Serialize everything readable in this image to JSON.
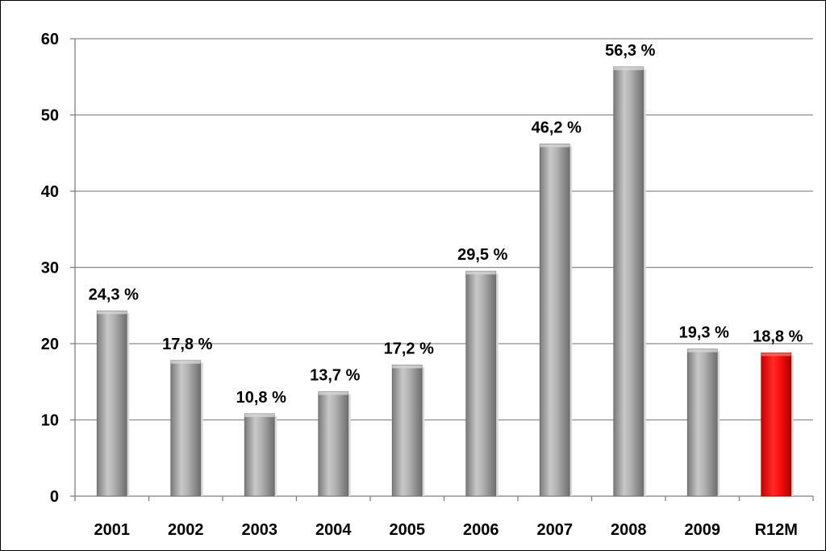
{
  "chart_data": {
    "type": "bar",
    "title": "",
    "xlabel": "",
    "ylabel": "",
    "categories": [
      "2001",
      "2002",
      "2003",
      "2004",
      "2005",
      "2006",
      "2007",
      "2008",
      "2009",
      "R12M"
    ],
    "values": [
      24.3,
      17.8,
      10.8,
      13.7,
      17.2,
      29.5,
      46.2,
      56.3,
      19.3,
      18.8
    ],
    "data_labels": [
      "24,3 %",
      "17,8 %",
      "10,8 %",
      "13,7 %",
      "17,2 %",
      "29,5 %",
      "46,2 %",
      "56,3 %",
      "19,3 %",
      "18,8 %"
    ],
    "ylim": [
      0,
      60
    ],
    "yticks": [
      "0",
      "10",
      "20",
      "30",
      "40",
      "50",
      "60"
    ],
    "grid": true,
    "legend": "none",
    "colors": {
      "bar": "#a6a6a6",
      "highlight_bar": "#ff0000",
      "highlight_category": "R12M",
      "grid": "#8c8c8c"
    }
  }
}
